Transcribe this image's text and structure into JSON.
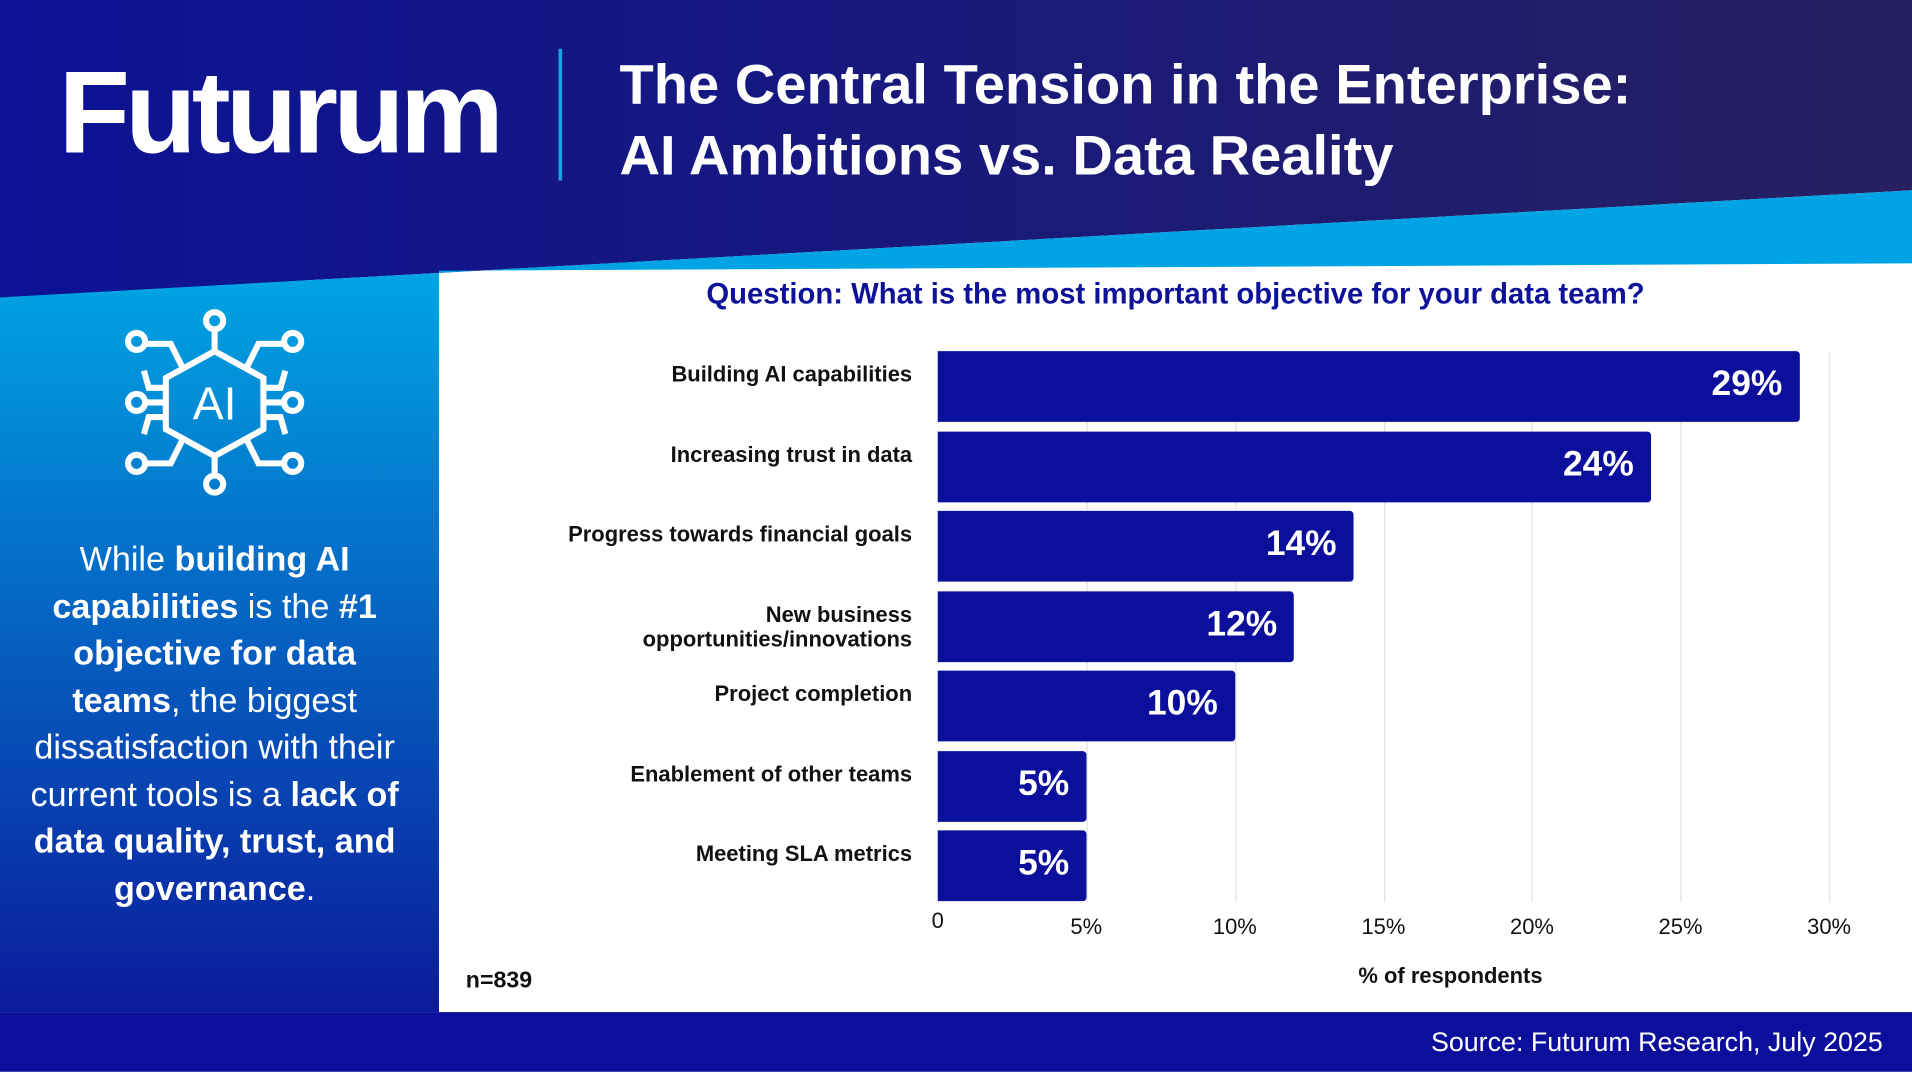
{
  "header": {
    "logo": "Futurum",
    "title_line1": "The Central Tension in the Enterprise:",
    "title_line2": "AI Ambitions vs. Data Reality"
  },
  "sidebar": {
    "icon": "ai-chip-icon",
    "text_parts": [
      "While ",
      "building AI capabilities",
      " is the ",
      "#1 objective for data teams",
      ", the biggest dissatisfaction with their current tools is a ",
      "lack of data quality, trust, and governance",
      "."
    ]
  },
  "footer": {
    "sample": "n=839",
    "source": "Source: Futurum Research, July 2025"
  },
  "colors": {
    "navy": "#0b0f9b",
    "light_blue": "#00a3e0",
    "bar": "#0b0f9b"
  },
  "chart_data": {
    "type": "bar",
    "orientation": "horizontal",
    "title": "Question: What is the most important objective for your data team?",
    "categories": [
      "Building AI capabilities",
      "Increasing trust in data",
      "Progress towards financial goals",
      "New business opportunities/innovations",
      "Project completion",
      "Enablement of other teams",
      "Meeting SLA metrics"
    ],
    "values": [
      29,
      24,
      14,
      12,
      10,
      5,
      5
    ],
    "value_labels": [
      "29%",
      "24%",
      "14%",
      "12%",
      "10%",
      "5%",
      "5%"
    ],
    "xlabel": "% of respondents",
    "xlim": [
      0,
      30
    ],
    "xticks": [
      "0",
      "5%",
      "10%",
      "15%",
      "20%",
      "25%",
      "30%"
    ],
    "grid": true
  }
}
